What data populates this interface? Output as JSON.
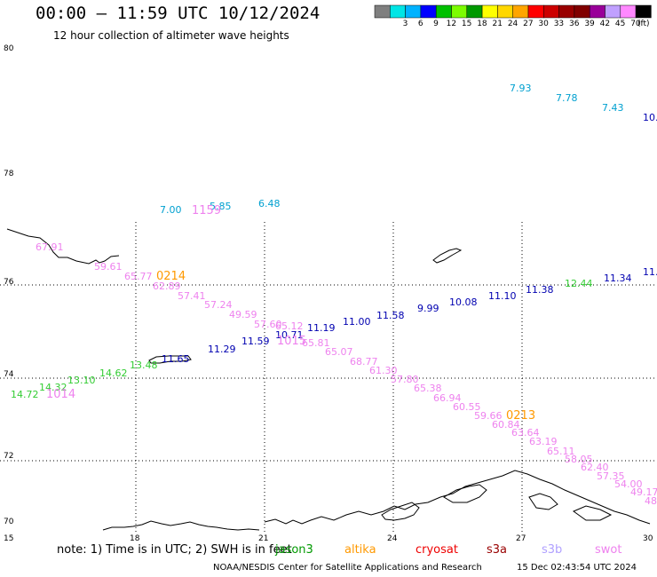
{
  "header": {
    "title": "00:00 – 11:59 UTC 10/12/2024",
    "subtitle": "12 hour collection of altimeter wave heights"
  },
  "legend": {
    "swatches": [
      {
        "label": "",
        "color": "#7f7f7f"
      },
      {
        "label": "3",
        "color": "#00e5e5"
      },
      {
        "label": "6",
        "color": "#00b2ff"
      },
      {
        "label": "9",
        "color": "#0000ff"
      },
      {
        "label": "12",
        "color": "#00c000"
      },
      {
        "label": "15",
        "color": "#7cfc00"
      },
      {
        "label": "18",
        "color": "#009900"
      },
      {
        "label": "21",
        "color": "#ffff00"
      },
      {
        "label": "24",
        "color": "#ffd700"
      },
      {
        "label": "27",
        "color": "#ffa500"
      },
      {
        "label": "30",
        "color": "#ff0000"
      },
      {
        "label": "33",
        "color": "#cc0000"
      },
      {
        "label": "36",
        "color": "#990000"
      },
      {
        "label": "39",
        "color": "#800000"
      },
      {
        "label": "42",
        "color": "#990099"
      },
      {
        "label": "45",
        "color": "#c0a0ff"
      },
      {
        "label": "70",
        "color": "#ff88ff"
      },
      {
        "label": "",
        "color": "#000000"
      }
    ],
    "unit": "(ft)"
  },
  "axes": {
    "lat_labels": [
      "80",
      "78",
      "76",
      "74",
      "72",
      "70"
    ],
    "lon_labels": [
      "15",
      "18",
      "21",
      "24",
      "27",
      "30"
    ]
  },
  "observations": [
    {
      "text": "7.93",
      "color": "#00a0d0"
    },
    {
      "text": "7.78",
      "color": "#00a0d0"
    },
    {
      "text": "7.43",
      "color": "#00a0d0"
    },
    {
      "text": "10.",
      "color": "#0000b0"
    },
    {
      "text": "7.00",
      "color": "#00a0d0"
    },
    {
      "text": "5.85",
      "color": "#00a0d0"
    },
    {
      "text": "1159",
      "color": "#ee82ee"
    },
    {
      "text": "6.48",
      "color": "#00a0d0"
    },
    {
      "text": "67.91",
      "color": "#ee82ee"
    },
    {
      "text": "59.61",
      "color": "#ee82ee"
    },
    {
      "text": "65.77",
      "color": "#ee82ee"
    },
    {
      "text": "0214",
      "color": "#ff9900"
    },
    {
      "text": "62.89",
      "color": "#ee82ee"
    },
    {
      "text": "57.41",
      "color": "#ee82ee"
    },
    {
      "text": "57.24",
      "color": "#ee82ee"
    },
    {
      "text": "49.59",
      "color": "#ee82ee"
    },
    {
      "text": "57.60",
      "color": "#ee82ee"
    },
    {
      "text": "10.71",
      "color": "#0000b0"
    },
    {
      "text": "65.12",
      "color": "#ee82ee"
    },
    {
      "text": "11.19",
      "color": "#0000b0"
    },
    {
      "text": "1015",
      "color": "#ee82ee"
    },
    {
      "text": "65.81",
      "color": "#ee82ee"
    },
    {
      "text": "11.00",
      "color": "#0000b0"
    },
    {
      "text": "11.58",
      "color": "#0000b0"
    },
    {
      "text": "9.99",
      "color": "#0000b0"
    },
    {
      "text": "10.08",
      "color": "#0000b0"
    },
    {
      "text": "11.10",
      "color": "#0000b0"
    },
    {
      "text": "11.38",
      "color": "#0000b0"
    },
    {
      "text": "12.44",
      "color": "#33cc33"
    },
    {
      "text": "11.34",
      "color": "#0000b0"
    },
    {
      "text": "11.",
      "color": "#0000b0"
    },
    {
      "text": "11.29",
      "color": "#0000b0"
    },
    {
      "text": "11.59",
      "color": "#0000b0"
    },
    {
      "text": "65.07",
      "color": "#ee82ee"
    },
    {
      "text": "68.77",
      "color": "#ee82ee"
    },
    {
      "text": "61.30",
      "color": "#ee82ee"
    },
    {
      "text": "11.65",
      "color": "#0000b0"
    },
    {
      "text": "13.48",
      "color": "#33cc33"
    },
    {
      "text": "14.62",
      "color": "#33cc33"
    },
    {
      "text": "13.10",
      "color": "#33cc33"
    },
    {
      "text": "14.32",
      "color": "#33cc33"
    },
    {
      "text": "14.72",
      "color": "#33cc33"
    },
    {
      "text": "1014",
      "color": "#ee82ee"
    },
    {
      "text": "57.80",
      "color": "#ee82ee"
    },
    {
      "text": "65.38",
      "color": "#ee82ee"
    },
    {
      "text": "66.94",
      "color": "#ee82ee"
    },
    {
      "text": "60.55",
      "color": "#ee82ee"
    },
    {
      "text": "59.66",
      "color": "#ee82ee"
    },
    {
      "text": "0213",
      "color": "#ff9900"
    },
    {
      "text": "60.84",
      "color": "#ee82ee"
    },
    {
      "text": "63.64",
      "color": "#ee82ee"
    },
    {
      "text": "63.19",
      "color": "#ee82ee"
    },
    {
      "text": "65.11",
      "color": "#ee82ee"
    },
    {
      "text": "58.05",
      "color": "#ee82ee"
    },
    {
      "text": "62.40",
      "color": "#ee82ee"
    },
    {
      "text": "57.35",
      "color": "#ee82ee"
    },
    {
      "text": "54.00",
      "color": "#ee82ee"
    },
    {
      "text": "49.17",
      "color": "#ee82ee"
    },
    {
      "text": "48.",
      "color": "#ee82ee"
    }
  ],
  "footer": {
    "note": "note:  1) Time is in UTC; 2) SWH is in feet",
    "satellites": [
      {
        "name": "jason3",
        "color": "#009900"
      },
      {
        "name": "altika",
        "color": "#ff9900"
      },
      {
        "name": "cryosat",
        "color": "#ee0000"
      },
      {
        "name": "s3a",
        "color": "#990000"
      },
      {
        "name": "s3b",
        "color": "#b0a0ff"
      },
      {
        "name": "swot",
        "color": "#ee82ee"
      }
    ],
    "credit": "NOAA/NESDIS Center for Satellite Applications and Research",
    "timestamp": "15 Dec 02:43:54 UTC 2024"
  }
}
